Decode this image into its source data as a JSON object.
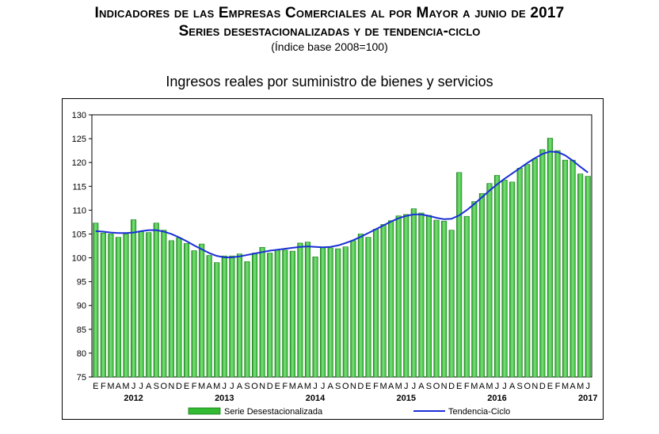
{
  "header": {
    "title_line1": "Indicadores de las Empresas Comerciales al por Mayor a junio de 2017",
    "title_line2": "Series desestacionalizadas y de tendencia-ciclo",
    "subtitle": "(Índice base 2008=100)"
  },
  "colors": {
    "bar": "#33bb33",
    "bar_edge": "#1a7a1a",
    "trend_line": "#1a2fd6"
  },
  "chart_data": {
    "type": "bar",
    "title": "Ingresos reales por suministro de bienes y servicios",
    "ylim": [
      75,
      130
    ],
    "yticks": [
      75,
      80,
      85,
      90,
      95,
      100,
      105,
      110,
      115,
      120,
      125,
      130
    ],
    "grid": false,
    "legend_position": "bottom",
    "month_labels": [
      "E",
      "F",
      "M",
      "A",
      "M",
      "J",
      "J",
      "A",
      "S",
      "O",
      "N",
      "D",
      "E",
      "F",
      "M",
      "A",
      "M",
      "J",
      "J",
      "A",
      "S",
      "O",
      "N",
      "D",
      "E",
      "F",
      "M",
      "A",
      "M",
      "J",
      "J",
      "A",
      "S",
      "O",
      "N",
      "D",
      "E",
      "F",
      "M",
      "A",
      "M",
      "J",
      "J",
      "A",
      "S",
      "O",
      "N",
      "D",
      "E",
      "F",
      "M",
      "A",
      "M",
      "J",
      "J",
      "A",
      "S",
      "O",
      "N",
      "D",
      "E",
      "F",
      "M",
      "A",
      "M",
      "J"
    ],
    "years": [
      {
        "label": "2012",
        "start": 0
      },
      {
        "label": "2013",
        "start": 12
      },
      {
        "label": "2014",
        "start": 24
      },
      {
        "label": "2015",
        "start": 36
      },
      {
        "label": "2016",
        "start": 48
      },
      {
        "label": "2017",
        "start": 60
      }
    ],
    "series": [
      {
        "name": "Serie Desestacionalizada",
        "kind": "bar",
        "values": [
          107.3,
          105.2,
          105.0,
          104.3,
          105.0,
          108.0,
          105.5,
          105.3,
          107.3,
          105.8,
          103.6,
          104.2,
          103.0,
          101.5,
          102.9,
          100.5,
          99.0,
          100.4,
          100.4,
          100.8,
          99.2,
          101.0,
          102.2,
          101.0,
          101.6,
          101.6,
          101.4,
          103.1,
          103.3,
          100.2,
          102.2,
          102.1,
          101.9,
          102.3,
          103.6,
          105.0,
          104.3,
          106.0,
          107.0,
          107.8,
          108.8,
          109.1,
          110.3,
          109.4,
          108.9,
          107.9,
          107.7,
          105.8,
          117.9,
          108.7,
          111.8,
          113.5,
          115.6,
          117.3,
          116.3,
          115.9,
          118.8,
          119.6,
          120.8,
          122.7,
          125.1,
          122.5,
          120.5,
          120.5,
          117.6,
          117.1
        ]
      },
      {
        "name": "Tendencia-Ciclo",
        "kind": "line",
        "values": [
          105.6,
          105.5,
          105.3,
          105.2,
          105.2,
          105.3,
          105.6,
          105.8,
          105.8,
          105.5,
          105.0,
          104.3,
          103.5,
          102.6,
          101.8,
          101.0,
          100.4,
          100.1,
          100.1,
          100.3,
          100.6,
          100.9,
          101.2,
          101.5,
          101.7,
          101.9,
          102.1,
          102.3,
          102.4,
          102.3,
          102.2,
          102.3,
          102.6,
          103.1,
          103.7,
          104.4,
          105.2,
          106.0,
          106.8,
          107.6,
          108.3,
          108.8,
          109.1,
          109.1,
          108.8,
          108.4,
          108.1,
          108.2,
          108.9,
          110.0,
          111.3,
          112.7,
          114.1,
          115.4,
          116.6,
          117.7,
          118.8,
          119.9,
          120.9,
          121.8,
          122.3,
          122.2,
          121.5,
          120.4,
          119.1,
          117.9
        ]
      }
    ]
  }
}
